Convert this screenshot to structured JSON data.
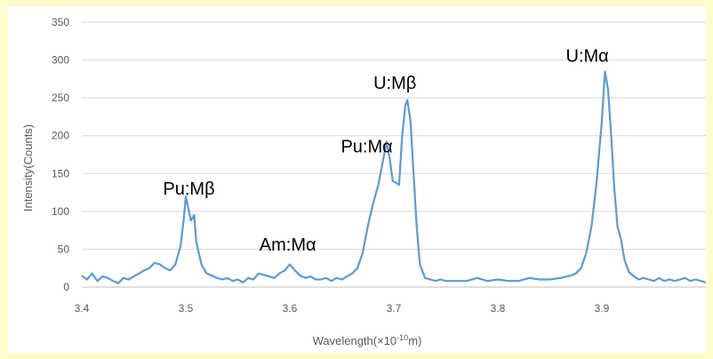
{
  "chart_data": {
    "type": "line",
    "title": "",
    "ylabel": "Intensity(Counts)",
    "xlabel": {
      "prefix": "Wavelength(",
      "times": "×",
      "base": "10",
      "exponent": "-10",
      "unit": "m",
      "suffix": ")"
    },
    "xlim": [
      3.4,
      4.0
    ],
    "ylim": [
      0,
      350
    ],
    "x_ticks": [
      "3.4",
      "3.5",
      "3.6",
      "3.7",
      "3.8",
      "3.9"
    ],
    "y_ticks": [
      "0",
      "50",
      "100",
      "150",
      "200",
      "250",
      "300",
      "350"
    ],
    "grid": "horizontal",
    "series": [
      {
        "color": "#5b9bd5",
        "x": [
          3.4,
          3.405,
          3.41,
          3.415,
          3.42,
          3.425,
          3.43,
          3.435,
          3.44,
          3.445,
          3.45,
          3.455,
          3.46,
          3.465,
          3.47,
          3.475,
          3.48,
          3.485,
          3.49,
          3.495,
          3.498,
          3.5,
          3.503,
          3.505,
          3.508,
          3.51,
          3.515,
          3.52,
          3.525,
          3.53,
          3.535,
          3.54,
          3.545,
          3.55,
          3.555,
          3.56,
          3.565,
          3.57,
          3.575,
          3.58,
          3.585,
          3.59,
          3.595,
          3.6,
          3.605,
          3.61,
          3.615,
          3.62,
          3.625,
          3.63,
          3.635,
          3.64,
          3.645,
          3.65,
          3.655,
          3.66,
          3.665,
          3.67,
          3.675,
          3.68,
          3.685,
          3.69,
          3.693,
          3.696,
          3.699,
          3.702,
          3.705,
          3.708,
          3.711,
          3.713,
          3.716,
          3.719,
          3.722,
          3.725,
          3.73,
          3.735,
          3.74,
          3.745,
          3.75,
          3.76,
          3.77,
          3.78,
          3.79,
          3.8,
          3.81,
          3.82,
          3.83,
          3.84,
          3.85,
          3.86,
          3.87,
          3.875,
          3.88,
          3.885,
          3.89,
          3.895,
          3.9,
          3.903,
          3.906,
          3.909,
          3.912,
          3.915,
          3.918,
          3.922,
          3.926,
          3.93,
          3.935,
          3.94,
          3.945,
          3.95,
          3.955,
          3.96,
          3.965,
          3.97,
          3.975,
          3.98,
          3.985,
          3.99,
          3.995,
          4.0
        ],
        "y": [
          15,
          10,
          18,
          8,
          14,
          12,
          8,
          5,
          12,
          10,
          14,
          18,
          22,
          25,
          32,
          30,
          25,
          22,
          30,
          55,
          90,
          120,
          100,
          88,
          95,
          60,
          30,
          18,
          15,
          12,
          10,
          12,
          8,
          10,
          6,
          12,
          10,
          18,
          16,
          14,
          12,
          18,
          22,
          30,
          22,
          15,
          12,
          14,
          10,
          10,
          12,
          8,
          12,
          10,
          14,
          18,
          25,
          45,
          80,
          110,
          135,
          170,
          192,
          170,
          140,
          138,
          135,
          200,
          240,
          247,
          220,
          150,
          80,
          30,
          12,
          10,
          8,
          10,
          8,
          8,
          8,
          12,
          8,
          10,
          8,
          8,
          12,
          10,
          10,
          12,
          15,
          18,
          25,
          45,
          80,
          140,
          220,
          285,
          260,
          200,
          130,
          80,
          65,
          35,
          20,
          15,
          10,
          12,
          10,
          8,
          12,
          8,
          10,
          8,
          10,
          12,
          8,
          10,
          8,
          6
        ]
      }
    ],
    "annotations": [
      {
        "text": "Pu:Mβ",
        "x": 3.503,
        "y": 122
      },
      {
        "text": "Am:Mα",
        "x": 3.598,
        "y": 48
      },
      {
        "text": "Pu:Mα",
        "x": 3.674,
        "y": 178
      },
      {
        "text": "U:Mβ",
        "x": 3.701,
        "y": 262
      },
      {
        "text": "U:Mα",
        "x": 3.886,
        "y": 298
      }
    ]
  }
}
